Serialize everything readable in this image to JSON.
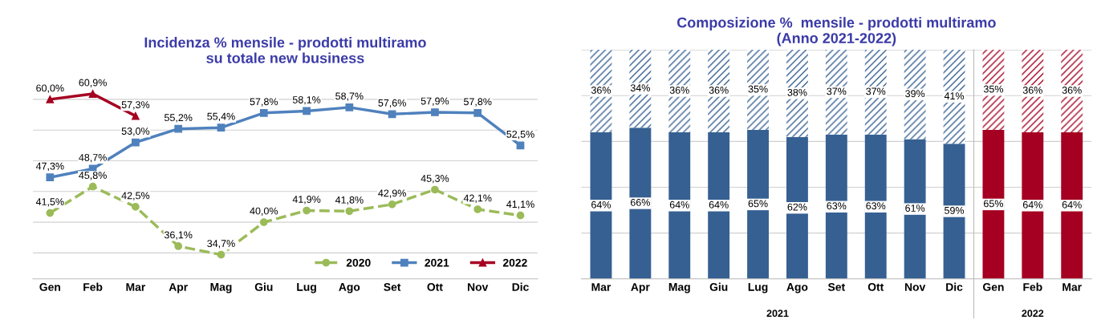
{
  "chart_data": [
    {
      "type": "line",
      "title": "Incidenza % mensile - prodotti multiramo\nsu totale new business",
      "categories": [
        "Gen",
        "Feb",
        "Mar",
        "Apr",
        "Mag",
        "Giu",
        "Lug",
        "Ago",
        "Set",
        "Ott",
        "Nov",
        "Dic"
      ],
      "series": [
        {
          "name": "2020",
          "color": "#9bbb59",
          "marker": "circle",
          "line_style": "dashed",
          "values": [
            41.5,
            45.8,
            42.5,
            36.1,
            34.7,
            40.0,
            41.9,
            41.8,
            42.9,
            45.3,
            42.1,
            41.1
          ],
          "value_labels": [
            "41,5%",
            "45,8%",
            "42,5%",
            "36,1%",
            "34,7%",
            "40,0%",
            "41,9%",
            "41,8%",
            "42,9%",
            "45,3%",
            "42,1%",
            "41,1%"
          ]
        },
        {
          "name": "2021",
          "color": "#4f81bd",
          "marker": "square",
          "line_style": "solid",
          "values": [
            47.3,
            48.7,
            53.0,
            55.2,
            55.4,
            57.8,
            58.1,
            58.7,
            57.6,
            57.9,
            57.8,
            52.5
          ],
          "value_labels": [
            "47,3%",
            "48,7%",
            "53,0%",
            "55,2%",
            "55,4%",
            "57,8%",
            "58,1%",
            "58,7%",
            "57,6%",
            "57,9%",
            "57,8%",
            "52,5%"
          ]
        },
        {
          "name": "2022",
          "color": "#a50021",
          "marker": "triangle",
          "line_style": "solid",
          "values": [
            60.0,
            60.9,
            57.3,
            null,
            null,
            null,
            null,
            null,
            null,
            null,
            null,
            null
          ],
          "value_labels": [
            "60,0%",
            "60,9%",
            "57,3%",
            null,
            null,
            null,
            null,
            null,
            null,
            null,
            null,
            null
          ]
        }
      ],
      "grid": "y",
      "legend": "bottom right",
      "tick_labels": "x"
    },
    {
      "type": "bar",
      "stacked": true,
      "title": "Composizione %  mensile - prodotti multiramo\n(Anno 2021-2022)",
      "categories": [
        "Mar",
        "Apr",
        "Mag",
        "Giu",
        "Lug",
        "Ago",
        "Set",
        "Ott",
        "Nov",
        "Dic",
        "Gen",
        "Feb",
        "Mar"
      ],
      "series": [
        {
          "colors": [
            "#366092",
            "#366092",
            "#366092",
            "#366092",
            "#366092",
            "#366092",
            "#366092",
            "#366092",
            "#366092",
            "#366092",
            "#a50021",
            "#a50021",
            "#a50021"
          ],
          "values": [
            64,
            66,
            64,
            64,
            65,
            62,
            63,
            63,
            61,
            59,
            65,
            64,
            64
          ],
          "value_labels": [
            "64%",
            "66%",
            "64%",
            "64%",
            "65%",
            "62%",
            "63%",
            "63%",
            "61%",
            "59%",
            "65%",
            "64%",
            "64%"
          ]
        },
        {
          "colors": [
            "#366092",
            "#366092",
            "#366092",
            "#366092",
            "#366092",
            "#366092",
            "#366092",
            "#366092",
            "#366092",
            "#366092",
            "#a50021",
            "#a50021",
            "#a50021"
          ],
          "values": [
            36,
            34,
            36,
            36,
            35,
            38,
            37,
            37,
            39,
            41,
            35,
            36,
            36
          ],
          "value_labels": [
            "36%",
            "34%",
            "36%",
            "36%",
            "35%",
            "38%",
            "37%",
            "37%",
            "39%",
            "41%",
            "35%",
            "36%",
            "36%"
          ]
        }
      ],
      "grid": "y",
      "tick_labels": "x",
      "annotations": [
        "2021",
        "2022"
      ]
    }
  ]
}
